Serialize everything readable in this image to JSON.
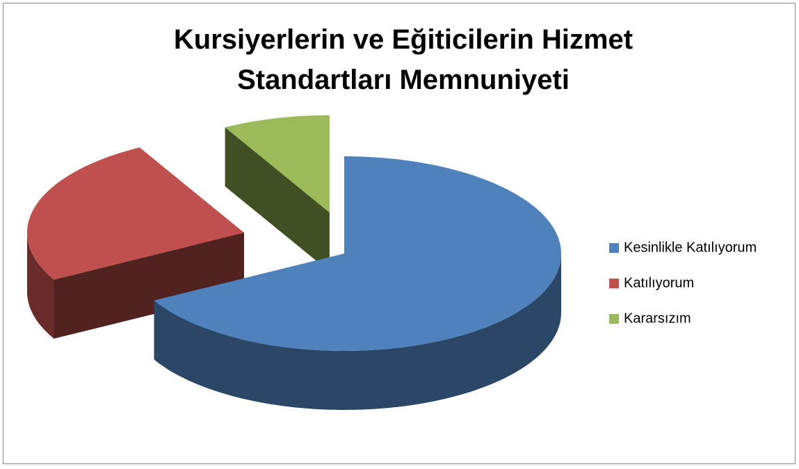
{
  "chart_data": {
    "type": "pie3d",
    "title": "Kursiyerlerin ve Eğiticilerin Hizmet Standartları Memnuniyeti",
    "categories": [
      "Kesinlikle Katılıyorum",
      "Katılıyorum",
      "Kararsızım"
    ],
    "values": [
      67,
      25,
      8
    ],
    "colors": [
      "#4f81bd",
      "#c0504d",
      "#9bbb59"
    ],
    "legend": "right"
  }
}
